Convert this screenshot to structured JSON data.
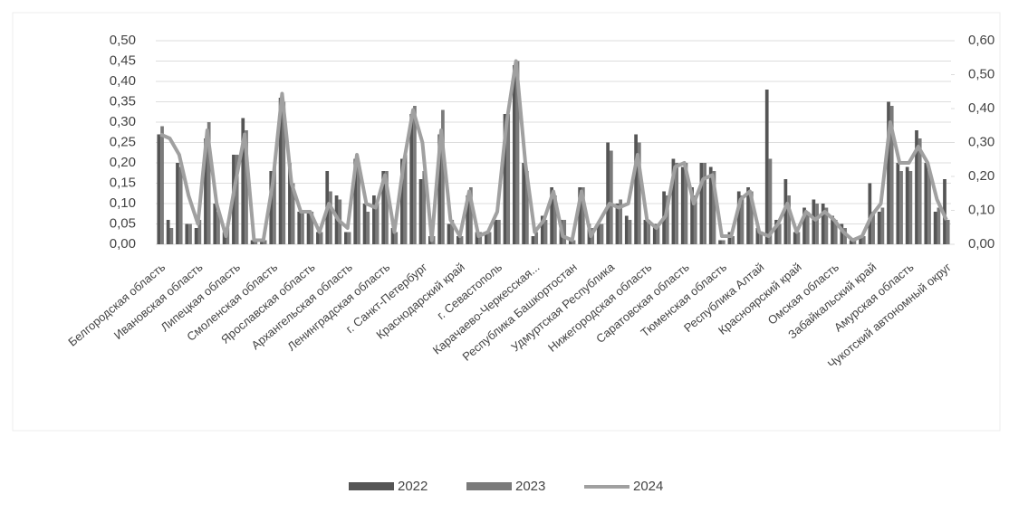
{
  "chart_data": {
    "type": "bar",
    "categories": [
      "Белгородская область",
      null,
      null,
      null,
      "Ивановская область",
      null,
      null,
      null,
      "Липецкая область",
      null,
      null,
      null,
      "Смоленская область",
      null,
      null,
      null,
      "Ярославская область",
      null,
      null,
      null,
      "Архангельская область",
      null,
      null,
      null,
      "Ленинградская область",
      null,
      null,
      null,
      "г. Санкт-Петербург",
      null,
      null,
      null,
      "Краснодарский край",
      null,
      null,
      null,
      "г. Севастополь",
      null,
      null,
      null,
      "Карачаево-Черкесская...",
      null,
      null,
      null,
      "Республика Башкортостан",
      null,
      null,
      null,
      "Удмуртская Республика",
      null,
      null,
      null,
      "Нижегородская область",
      null,
      null,
      null,
      "Саратовская область",
      null,
      null,
      null,
      "Тюменская область",
      null,
      null,
      null,
      "Республика Алтай",
      null,
      null,
      null,
      "Красноярский край",
      null,
      null,
      null,
      "Омская область",
      null,
      null,
      null,
      "Забайкальский край",
      null,
      null,
      null,
      "Амурская область",
      null,
      null,
      null,
      "Чукотский автономный округ"
    ],
    "series": [
      {
        "name": "2022",
        "color": "#555555",
        "type": "bar",
        "values": [
          0.27,
          0.06,
          0.2,
          0.05,
          0.04,
          0.26,
          0.1,
          0.03,
          0.22,
          0.31,
          0.01,
          0.01,
          0.18,
          0.36,
          0.2,
          0.08,
          0.08,
          0.03,
          0.18,
          0.12,
          0.03,
          0.21,
          0.1,
          0.12,
          0.18,
          0.04,
          0.21,
          0.32,
          0.16,
          0.02,
          0.27,
          0.05,
          0.02,
          0.12,
          0.03,
          0.03,
          0.06,
          0.32,
          0.44,
          0.2,
          0.02,
          0.07,
          0.14,
          0.06,
          0.01,
          0.14,
          0.05,
          0.05,
          0.25,
          0.1,
          0.07,
          0.27,
          0.06,
          0.05,
          0.13,
          0.21,
          0.19,
          0.14,
          0.2,
          0.19,
          0.01,
          0.03,
          0.13,
          0.14,
          0.04,
          0.38,
          0.06,
          0.16,
          0.03,
          0.09,
          0.11,
          0.1,
          0.07,
          0.05,
          0.01,
          0.02,
          0.15,
          0.08,
          0.35,
          0.2,
          0.19,
          0.28,
          0.2,
          0.08,
          0.16
        ]
      },
      {
        "name": "2023",
        "color": "#7a7a7a",
        "type": "bar",
        "values": [
          0.29,
          0.04,
          0.19,
          0.05,
          0.06,
          0.3,
          0.08,
          0.04,
          0.22,
          0.28,
          0.01,
          0.01,
          0.19,
          0.35,
          0.15,
          0.08,
          0.08,
          0.03,
          0.13,
          0.11,
          0.03,
          0.2,
          0.08,
          0.1,
          0.18,
          0.03,
          0.22,
          0.34,
          0.18,
          0.02,
          0.33,
          0.06,
          0.02,
          0.14,
          0.03,
          0.03,
          0.06,
          0.32,
          0.45,
          0.18,
          0.03,
          0.06,
          0.12,
          0.06,
          0.01,
          0.14,
          0.04,
          0.05,
          0.23,
          0.11,
          0.06,
          0.25,
          0.06,
          0.05,
          0.12,
          0.2,
          0.2,
          0.12,
          0.2,
          0.18,
          0.01,
          0.02,
          0.12,
          0.13,
          0.03,
          0.21,
          0.05,
          0.12,
          0.03,
          0.08,
          0.1,
          0.09,
          0.06,
          0.04,
          0.01,
          0.02,
          0.08,
          0.09,
          0.34,
          0.18,
          0.18,
          0.26,
          0.18,
          0.09,
          0.06
        ]
      },
      {
        "name": "2024",
        "color": "#a0a0a0",
        "type": "line",
        "values": [
          0.27,
          0.26,
          0.22,
          0.12,
          0.05,
          0.28,
          0.1,
          0.02,
          0.15,
          0.27,
          0.01,
          0.01,
          0.15,
          0.37,
          0.15,
          0.08,
          0.08,
          0.03,
          0.1,
          0.06,
          0.04,
          0.22,
          0.1,
          0.09,
          0.17,
          0.03,
          0.2,
          0.33,
          0.25,
          0.01,
          0.28,
          0.06,
          0.02,
          0.13,
          0.02,
          0.03,
          0.08,
          0.3,
          0.45,
          0.2,
          0.03,
          0.06,
          0.13,
          0.02,
          0.01,
          0.13,
          0.02,
          0.06,
          0.1,
          0.09,
          0.1,
          0.22,
          0.06,
          0.04,
          0.07,
          0.19,
          0.2,
          0.1,
          0.16,
          0.17,
          0.02,
          0.02,
          0.11,
          0.13,
          0.03,
          0.02,
          0.05,
          0.1,
          0.03,
          0.08,
          0.06,
          0.08,
          0.06,
          0.03,
          0.01,
          0.02,
          0.07,
          0.1,
          0.3,
          0.2,
          0.2,
          0.24,
          0.2,
          0.11,
          0.06
        ]
      }
    ],
    "ylim": [
      0,
      0.5
    ],
    "yticks": [
      {
        "value": 0,
        "label": "0,00"
      },
      {
        "value": 0.05,
        "label": "0,05"
      },
      {
        "value": 0.1,
        "label": "0,10"
      },
      {
        "value": 0.15,
        "label": "0,15"
      },
      {
        "value": 0.2,
        "label": "0,20"
      },
      {
        "value": 0.25,
        "label": "0,25"
      },
      {
        "value": 0.3,
        "label": "0,30"
      },
      {
        "value": 0.35,
        "label": "0,35"
      },
      {
        "value": 0.4,
        "label": "0,40"
      },
      {
        "value": 0.45,
        "label": "0,45"
      },
      {
        "value": 0.5,
        "label": "0,50"
      }
    ],
    "y2lim": [
      0,
      0.6
    ],
    "y2ticks": [
      {
        "value": 0,
        "label": "0,00"
      },
      {
        "value": 0.1,
        "label": "0,10"
      },
      {
        "value": 0.2,
        "label": "0,20"
      },
      {
        "value": 0.3,
        "label": "0,30"
      },
      {
        "value": 0.4,
        "label": "0,40"
      },
      {
        "value": 0.5,
        "label": "0,50"
      },
      {
        "value": 0.6,
        "label": "0,60"
      }
    ],
    "grid": true,
    "legend": "bottom"
  }
}
